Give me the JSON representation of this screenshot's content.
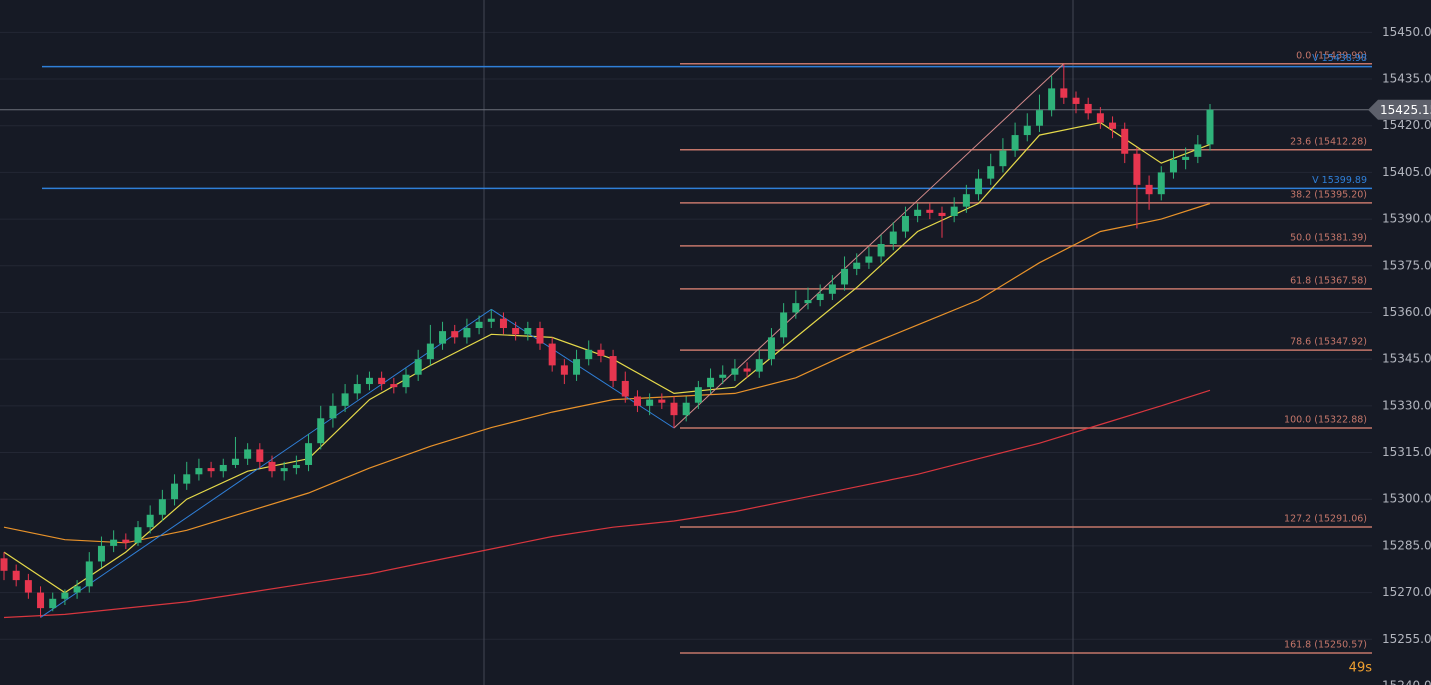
{
  "chart_data": {
    "type": "candlestick",
    "ylim": [
      15240.3,
      15460.4
    ],
    "yticks": [
      {
        "value": 15240,
        "label": "15240.0"
      },
      {
        "value": 15255,
        "label": "15255.0"
      },
      {
        "value": 15270,
        "label": "15270.0"
      },
      {
        "value": 15285,
        "label": "15285.0"
      },
      {
        "value": 15300,
        "label": "15300.0"
      },
      {
        "value": 15315,
        "label": "15315.0"
      },
      {
        "value": 15330,
        "label": "15330.0"
      },
      {
        "value": 15345,
        "label": "15345.0"
      },
      {
        "value": 15360,
        "label": "15360.0"
      },
      {
        "value": 15375,
        "label": "15375.0"
      },
      {
        "value": 15390,
        "label": "15390.0"
      },
      {
        "value": 15405,
        "label": "15405.0"
      },
      {
        "value": 15420,
        "label": "15420.0"
      },
      {
        "value": 15435,
        "label": "15435.0"
      },
      {
        "value": 15450,
        "label": "15450.0"
      }
    ],
    "grid": true,
    "up_color": "#2fb37a",
    "down_color": "#e8364f",
    "candles": {
      "open": [
        15281,
        15277,
        15274,
        15270,
        15265,
        15268,
        15270,
        15272,
        15280,
        15285,
        15287,
        15286,
        15291,
        15295,
        15300,
        15305,
        15308,
        15310,
        15309,
        15311,
        15313,
        15316,
        15312,
        15309,
        15310,
        15311,
        15318,
        15326,
        15330,
        15334,
        15337,
        15339,
        15337,
        15336,
        15340,
        15345,
        15350,
        15354,
        15352,
        15355,
        15357,
        15358,
        15355,
        15353,
        15355,
        15350,
        15343,
        15340,
        15345,
        15348,
        15346,
        15338,
        15333,
        15330,
        15332,
        15331,
        15327,
        15331,
        15336,
        15339,
        15340,
        15342,
        15341,
        15345,
        15352,
        15360,
        15363,
        15364,
        15366,
        15369,
        15374,
        15376,
        15378,
        15382,
        15386,
        15391,
        15393,
        15392,
        15391,
        15394,
        15398,
        15403,
        15407,
        15412,
        15417,
        15420,
        15425,
        15432,
        15429,
        15427,
        15424,
        15421,
        15419,
        15411,
        15401,
        15398,
        15405,
        15409,
        15410,
        15414
      ],
      "high": [
        15283,
        15279,
        15276,
        15272,
        15270,
        15271,
        15274,
        15283,
        15288,
        15290,
        15289,
        15293,
        15298,
        15303,
        15308,
        15312,
        15313,
        15312,
        15313,
        15320,
        15318,
        15318,
        15314,
        15312,
        15314,
        15321,
        15330,
        15334,
        15337,
        15340,
        15341,
        15341,
        15339,
        15342,
        15348,
        15356,
        15357,
        15356,
        15358,
        15359,
        15361,
        15360,
        15357,
        15357,
        15357,
        15352,
        15345,
        15348,
        15351,
        15350,
        15348,
        15341,
        15335,
        15334,
        15334,
        15333,
        15333,
        15338,
        15342,
        15343,
        15345,
        15344,
        15348,
        15355,
        15363,
        15367,
        15368,
        15369,
        15372,
        15378,
        15379,
        15381,
        15385,
        15389,
        15394,
        15395,
        15395,
        15394,
        15397,
        15401,
        15406,
        15411,
        15416,
        15421,
        15424,
        15430,
        15436,
        15439.9,
        15431,
        15429,
        15426,
        15423,
        15421,
        15413,
        15404,
        15407,
        15412,
        15413,
        15417,
        15427
      ],
      "low": [
        15274,
        15272,
        15268,
        15262,
        15264,
        15266,
        15268,
        15270,
        15278,
        15283,
        15284,
        15285,
        15289,
        15293,
        15298,
        15303,
        15306,
        15307,
        15307,
        15310,
        15311,
        15310,
        15307,
        15306,
        15308,
        15309,
        15316,
        15323,
        15328,
        15332,
        15335,
        15335,
        15334,
        15334,
        15338,
        15343,
        15348,
        15350,
        15350,
        15353,
        15355,
        15353,
        15351,
        15351,
        15348,
        15341,
        15337,
        15338,
        15343,
        15344,
        15336,
        15331,
        15328,
        15327,
        15329,
        15322.88,
        15325,
        15329,
        15334,
        15337,
        15338,
        15339,
        15339,
        15343,
        15350,
        15358,
        15361,
        15362,
        15364,
        15367,
        15372,
        15374,
        15376,
        15380,
        15384,
        15389,
        15390,
        15384,
        15389,
        15392,
        15396,
        15401,
        15405,
        15410,
        15415,
        15418,
        15423,
        15427,
        15424,
        15422,
        15419,
        15416,
        15408,
        15387,
        15393,
        15396,
        15403,
        15406,
        15408,
        15412
      ],
      "close": [
        15277,
        15274,
        15270,
        15265,
        15268,
        15270,
        15272,
        15280,
        15285,
        15287,
        15286,
        15291,
        15295,
        15300,
        15305,
        15308,
        15310,
        15309,
        15311,
        15313,
        15316,
        15312,
        15309,
        15310,
        15311,
        15318,
        15326,
        15330,
        15334,
        15337,
        15339,
        15337,
        15336,
        15340,
        15345,
        15350,
        15354,
        15352,
        15355,
        15357,
        15358,
        15355,
        15353,
        15355,
        15350,
        15343,
        15340,
        15345,
        15348,
        15346,
        15338,
        15333,
        15330,
        15332,
        15331,
        15327,
        15331,
        15336,
        15339,
        15340,
        15342,
        15341,
        15345,
        15352,
        15360,
        15363,
        15364,
        15366,
        15369,
        15374,
        15376,
        15378,
        15382,
        15386,
        15391,
        15393,
        15392,
        15391,
        15394,
        15398,
        15403,
        15407,
        15412,
        15417,
        15420,
        15425,
        15432,
        15429,
        15427,
        15424,
        15421,
        15419,
        15411,
        15401,
        15398,
        15405,
        15409,
        15410,
        15414,
        15425.15
      ]
    },
    "moving_averages": [
      {
        "color": "#e5d94a",
        "x": [
          0,
          5,
          10,
          15,
          20,
          25,
          30,
          35,
          40,
          45,
          50,
          55,
          60,
          65,
          70,
          75,
          80,
          85,
          90,
          95,
          99
        ],
        "values": [
          15283,
          15270,
          15283,
          15300,
          15309,
          15313,
          15332,
          15343,
          15353,
          15352,
          15345,
          15334,
          15336,
          15352,
          15368,
          15386,
          15395,
          15417,
          15421,
          15408,
          15414
        ]
      },
      {
        "color": "#e8922a",
        "x": [
          0,
          5,
          10,
          15,
          20,
          25,
          30,
          35,
          40,
          45,
          50,
          55,
          60,
          65,
          70,
          75,
          80,
          85,
          90,
          95,
          99
        ],
        "values": [
          15291,
          15287,
          15286,
          15290,
          15296,
          15302,
          15310,
          15317,
          15323,
          15328,
          15332,
          15333,
          15334,
          15339,
          15348,
          15356,
          15364,
          15376,
          15386,
          15390,
          15395
        ]
      },
      {
        "color": "#d8363e",
        "x": [
          0,
          5,
          10,
          15,
          20,
          25,
          30,
          35,
          40,
          45,
          50,
          55,
          60,
          65,
          70,
          75,
          80,
          85,
          90,
          95,
          99
        ],
        "values": [
          15262,
          15263,
          15265,
          15267,
          15270,
          15273,
          15276,
          15280,
          15284,
          15288,
          15291,
          15293,
          15296,
          15300,
          15304,
          15308,
          15313,
          15318,
          15324,
          15330,
          15335
        ]
      }
    ],
    "horizontal_lines": [
      {
        "value": 15438.98,
        "label": "V 15438.98",
        "color": "#2f7fd8"
      },
      {
        "value": 15399.89,
        "label": "V 15399.89",
        "color": "#2f7fd8"
      }
    ],
    "fib_color": "#c4766a",
    "fib_levels": [
      {
        "value": 15439.9,
        "label": "0.0 (15439.90)"
      },
      {
        "value": 15412.28,
        "label": "23.6 (15412.28)"
      },
      {
        "value": 15395.2,
        "label": "38.2 (15395.20)"
      },
      {
        "value": 15381.39,
        "label": "50.0 (15381.39)"
      },
      {
        "value": 15367.58,
        "label": "61.8 (15367.58)"
      },
      {
        "value": 15347.92,
        "label": "78.6 (15347.92)"
      },
      {
        "value": 15322.88,
        "label": "100.0 (15322.88)"
      },
      {
        "value": 15291.06,
        "label": "127.2 (15291.06)"
      },
      {
        "value": 15250.57,
        "label": "161.8 (15250.57)"
      }
    ],
    "last_price": 15425.15,
    "timer": "49s"
  }
}
